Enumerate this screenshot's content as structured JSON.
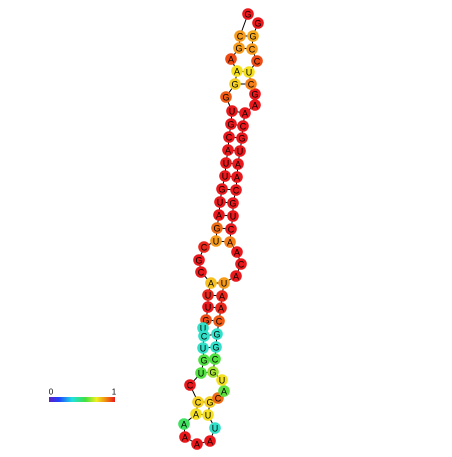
{
  "colorbar": {
    "min_label": "0",
    "max_label": "1"
  },
  "nodes": [
    {
      "label": "G",
      "color": "#e8181c"
    },
    {
      "label": "C",
      "color": "#f59a1a"
    },
    {
      "label": "G",
      "color": "#f59a1a"
    },
    {
      "label": "A",
      "color": "#ee4a14"
    },
    {
      "label": "A",
      "color": "#f5e020"
    },
    {
      "label": "G",
      "color": "#f5d020"
    },
    {
      "label": "G",
      "color": "#ee5a14"
    },
    {
      "label": "U",
      "color": "#e8181c"
    },
    {
      "label": "G",
      "color": "#e8181c"
    },
    {
      "label": "C",
      "color": "#e8181c"
    },
    {
      "label": "A",
      "color": "#e8181c"
    },
    {
      "label": "U",
      "color": "#e8181c"
    },
    {
      "label": "U",
      "color": "#e8181c"
    },
    {
      "label": "G",
      "color": "#e8181c"
    },
    {
      "label": "U",
      "color": "#e8181c"
    },
    {
      "label": "A",
      "color": "#e8181c"
    },
    {
      "label": "G",
      "color": "#ee6a14"
    },
    {
      "label": "U",
      "color": "#f59a1a"
    },
    {
      "label": "C",
      "color": "#e8281c"
    },
    {
      "label": "G",
      "color": "#e8181c"
    },
    {
      "label": "C",
      "color": "#e8181c"
    },
    {
      "label": "A",
      "color": "#f5c020"
    },
    {
      "label": "U",
      "color": "#e8281c"
    },
    {
      "label": "U",
      "color": "#e8181c"
    },
    {
      "label": "G",
      "color": "#ee4a14"
    },
    {
      "label": "U",
      "color": "#30e0c8"
    },
    {
      "label": "C",
      "color": "#30e0c8"
    },
    {
      "label": "U",
      "color": "#30e0c8"
    },
    {
      "label": "G",
      "color": "#50e040"
    },
    {
      "label": "U",
      "color": "#50e040"
    },
    {
      "label": "C",
      "color": "#e8181c"
    },
    {
      "label": "C",
      "color": "#f5d020"
    },
    {
      "label": "A",
      "color": "#f5e020"
    },
    {
      "label": "A",
      "color": "#40e060"
    },
    {
      "label": "A",
      "color": "#e8181c"
    },
    {
      "label": "A",
      "color": "#e8181c"
    },
    {
      "label": "A",
      "color": "#e8181c"
    },
    {
      "label": "U",
      "color": "#30e0c8"
    },
    {
      "label": "U",
      "color": "#f5e020"
    },
    {
      "label": "G",
      "color": "#f5d020"
    },
    {
      "label": "C",
      "color": "#ee6a14"
    },
    {
      "label": "A",
      "color": "#60e040"
    },
    {
      "label": "U",
      "color": "#f5e020"
    },
    {
      "label": "G",
      "color": "#a0e030"
    },
    {
      "label": "C",
      "color": "#50e040"
    },
    {
      "label": "G",
      "color": "#30e0c8"
    },
    {
      "label": "G",
      "color": "#30e0c8"
    },
    {
      "label": "C",
      "color": "#ee5a14"
    },
    {
      "label": "A",
      "color": "#e8281c"
    },
    {
      "label": "A",
      "color": "#e8281c"
    },
    {
      "label": "U",
      "color": "#f59a1a"
    },
    {
      "label": "A",
      "color": "#e8181c"
    },
    {
      "label": "C",
      "color": "#e8181c"
    },
    {
      "label": "A",
      "color": "#e8181c"
    },
    {
      "label": "A",
      "color": "#f5801a"
    },
    {
      "label": "C",
      "color": "#e8181c"
    },
    {
      "label": "U",
      "color": "#e8181c"
    },
    {
      "label": "G",
      "color": "#e8181c"
    },
    {
      "label": "C",
      "color": "#e8181c"
    },
    {
      "label": "A",
      "color": "#e8181c"
    },
    {
      "label": "A",
      "color": "#e8181c"
    },
    {
      "label": "U",
      "color": "#e8181c"
    },
    {
      "label": "G",
      "color": "#e8181c"
    },
    {
      "label": "C",
      "color": "#e8181c"
    },
    {
      "label": "A",
      "color": "#e8181c"
    },
    {
      "label": "A",
      "color": "#e8181c"
    },
    {
      "label": "G",
      "color": "#e8181c"
    },
    {
      "label": "C",
      "color": "#f5801a"
    },
    {
      "label": "U",
      "color": "#f5e020"
    },
    {
      "label": "C",
      "color": "#ee4a14"
    },
    {
      "label": "C",
      "color": "#f59a1a"
    },
    {
      "label": "G",
      "color": "#f5a81a"
    },
    {
      "label": "G",
      "color": "#e8181c"
    }
  ]
}
